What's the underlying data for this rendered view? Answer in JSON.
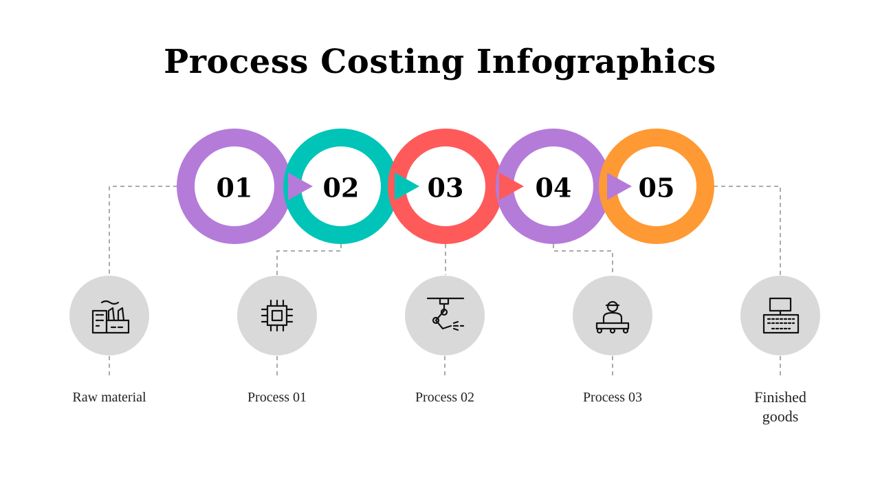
{
  "title": "Process Costing Infographics",
  "steps": [
    {
      "number": "01",
      "color": "#b57bd9"
    },
    {
      "number": "02",
      "color": "#00c4b8"
    },
    {
      "number": "03",
      "color": "#ff5a5a"
    },
    {
      "number": "04",
      "color": "#b57bd9"
    },
    {
      "number": "05",
      "color": "#ff9933"
    }
  ],
  "stages": [
    {
      "label": "Raw material"
    },
    {
      "label": "Process 01"
    },
    {
      "label": "Process 02"
    },
    {
      "label": "Process 03"
    },
    {
      "label": "Finished goods"
    }
  ]
}
